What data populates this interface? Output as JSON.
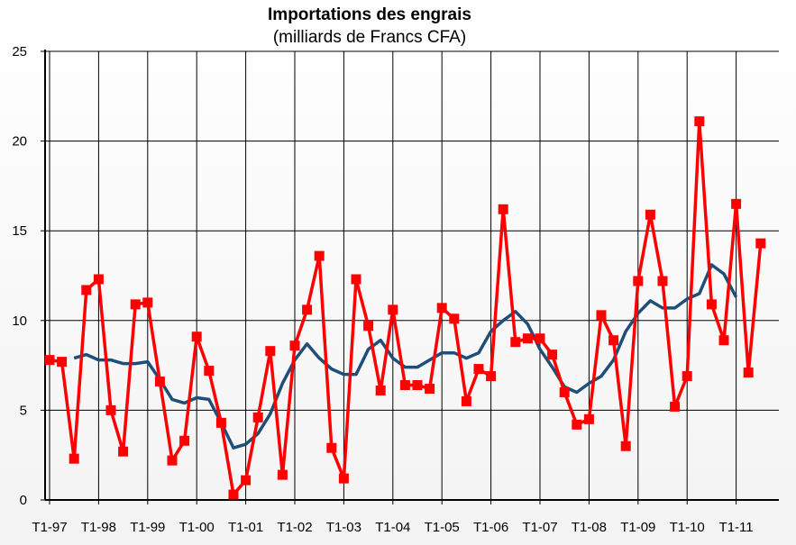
{
  "chart_data": {
    "type": "line",
    "title": "Importations des engrais",
    "subtitle": "(milliards de Francs CFA)",
    "ylim": [
      0,
      25
    ],
    "yticks": [
      0,
      5,
      10,
      15,
      20,
      25
    ],
    "grid": true,
    "x_tick_labels": [
      "T1-97",
      "T1-98",
      "T1-99",
      "T1-00",
      "T1-01",
      "T1-02",
      "T1-03",
      "T1-04",
      "T1-05",
      "T1-06",
      "T1-07",
      "T1-08",
      "T1-09",
      "T1-10",
      "T1-11"
    ],
    "n_quarters": 60,
    "series": [
      {
        "style": "markers",
        "color": "#ff0000",
        "values": [
          7.8,
          7.7,
          2.3,
          11.7,
          12.3,
          5.0,
          2.7,
          10.9,
          11.0,
          6.6,
          2.2,
          3.3,
          9.1,
          7.2,
          4.3,
          0.3,
          1.1,
          4.6,
          8.3,
          1.4,
          8.6,
          10.6,
          13.6,
          2.9,
          1.2,
          12.3,
          9.7,
          6.1,
          10.6,
          6.4,
          6.4,
          6.2,
          10.7,
          10.1,
          5.5,
          7.3,
          6.9,
          16.2,
          8.8,
          9.0,
          9.0,
          8.1,
          6.0,
          4.2,
          4.5,
          10.3,
          8.9,
          3.0,
          12.2,
          15.9,
          12.2,
          5.2,
          6.9,
          21.1,
          10.9,
          8.9,
          16.5,
          7.1,
          14.3
        ]
      },
      {
        "style": "smooth",
        "color": "#1f4e79",
        "start_index": 2,
        "values": [
          7.9,
          8.1,
          7.8,
          7.8,
          7.6,
          7.6,
          7.7,
          6.7,
          5.6,
          5.4,
          5.7,
          5.6,
          4.3,
          2.9,
          3.1,
          3.7,
          4.8,
          6.5,
          7.8,
          8.7,
          7.9,
          7.3,
          7.0,
          7.0,
          8.4,
          8.9,
          7.9,
          7.4,
          7.4,
          7.8,
          8.2,
          8.2,
          7.9,
          8.2,
          9.4,
          10.0,
          10.5,
          9.8,
          8.4,
          7.4,
          6.3,
          6.0,
          6.5,
          6.9,
          7.8,
          9.4,
          10.4,
          11.1,
          10.7,
          10.7,
          11.2,
          11.5,
          13.1,
          12.6,
          11.3
        ]
      }
    ]
  }
}
